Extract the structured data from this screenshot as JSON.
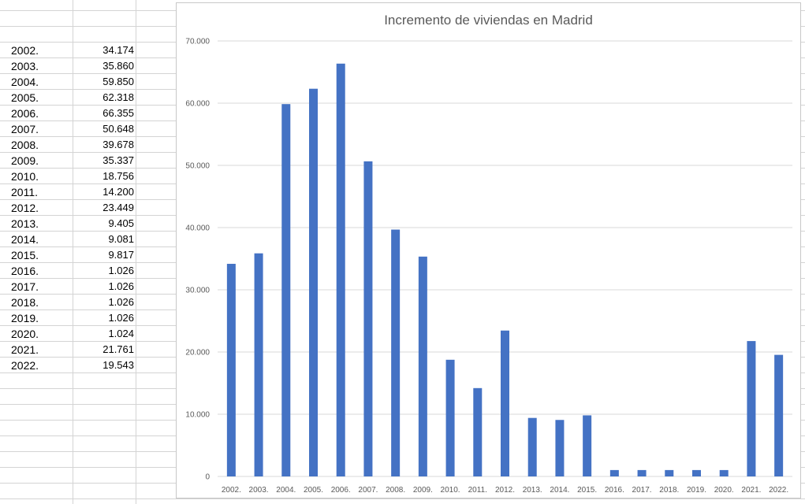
{
  "table": {
    "rows": [
      {
        "year": "2002.",
        "value": "34.174"
      },
      {
        "year": "2003.",
        "value": "35.860"
      },
      {
        "year": "2004.",
        "value": "59.850"
      },
      {
        "year": "2005.",
        "value": "62.318"
      },
      {
        "year": "2006.",
        "value": "66.355"
      },
      {
        "year": "2007.",
        "value": "50.648"
      },
      {
        "year": "2008.",
        "value": "39.678"
      },
      {
        "year": "2009.",
        "value": "35.337"
      },
      {
        "year": "2010.",
        "value": "18.756"
      },
      {
        "year": "2011.",
        "value": "14.200"
      },
      {
        "year": "2012.",
        "value": "23.449"
      },
      {
        "year": "2013.",
        "value": "9.405"
      },
      {
        "year": "2014.",
        "value": "9.081"
      },
      {
        "year": "2015.",
        "value": "9.817"
      },
      {
        "year": "2016.",
        "value": "1.026"
      },
      {
        "year": "2017.",
        "value": "1.026"
      },
      {
        "year": "2018.",
        "value": "1.026"
      },
      {
        "year": "2019.",
        "value": "1.026"
      },
      {
        "year": "2020.",
        "value": "1.024"
      },
      {
        "year": "2021.",
        "value": "21.761"
      },
      {
        "year": "2022.",
        "value": "19.543"
      }
    ]
  },
  "chart_data": {
    "type": "bar",
    "title": "Incremento de viviendas en Madrid",
    "xlabel": "",
    "ylabel": "",
    "categories": [
      "2002.",
      "2003.",
      "2004.",
      "2005.",
      "2006.",
      "2007.",
      "2008.",
      "2009.",
      "2010.",
      "2011.",
      "2012.",
      "2013.",
      "2014.",
      "2015.",
      "2016.",
      "2017.",
      "2018.",
      "2019.",
      "2020.",
      "2021.",
      "2022."
    ],
    "values": [
      34174,
      35860,
      59850,
      62318,
      66355,
      50648,
      39678,
      35337,
      18756,
      14200,
      23449,
      9405,
      9081,
      9817,
      1026,
      1026,
      1026,
      1026,
      1024,
      21761,
      19543
    ],
    "ylim": [
      0,
      70000
    ],
    "yticks": [
      0,
      10000,
      20000,
      30000,
      40000,
      50000,
      60000,
      70000
    ],
    "ytick_labels": [
      "0",
      "10.000",
      "20.000",
      "30.000",
      "40.000",
      "50.000",
      "60.000",
      "70.000"
    ],
    "grid": true,
    "bar_color": "#4472c4",
    "gridline_color": "#d9d9d9"
  }
}
